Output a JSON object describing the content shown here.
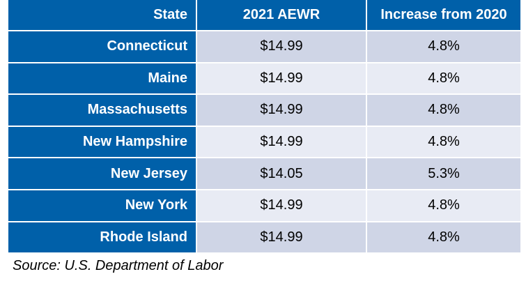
{
  "table": {
    "headers": [
      "State",
      "2021 AEWR",
      "Increase from 2020"
    ],
    "rows": [
      [
        "Connecticut",
        "$14.99",
        "4.8%"
      ],
      [
        "Maine",
        "$14.99",
        "4.8%"
      ],
      [
        "Massachusetts",
        "$14.99",
        "4.8%"
      ],
      [
        "New Hampshire",
        "$14.99",
        "4.8%"
      ],
      [
        "New Jersey",
        "$14.05",
        "5.3%"
      ],
      [
        "New York",
        "$14.99",
        "4.8%"
      ],
      [
        "Rhode Island",
        "$14.99",
        "4.8%"
      ]
    ]
  },
  "source": "Source: U.S. Department of Labor",
  "colors": {
    "header_bg": "#0060a9",
    "row_odd_bg": "#cfd5e6",
    "row_even_bg": "#e8ebf4"
  }
}
